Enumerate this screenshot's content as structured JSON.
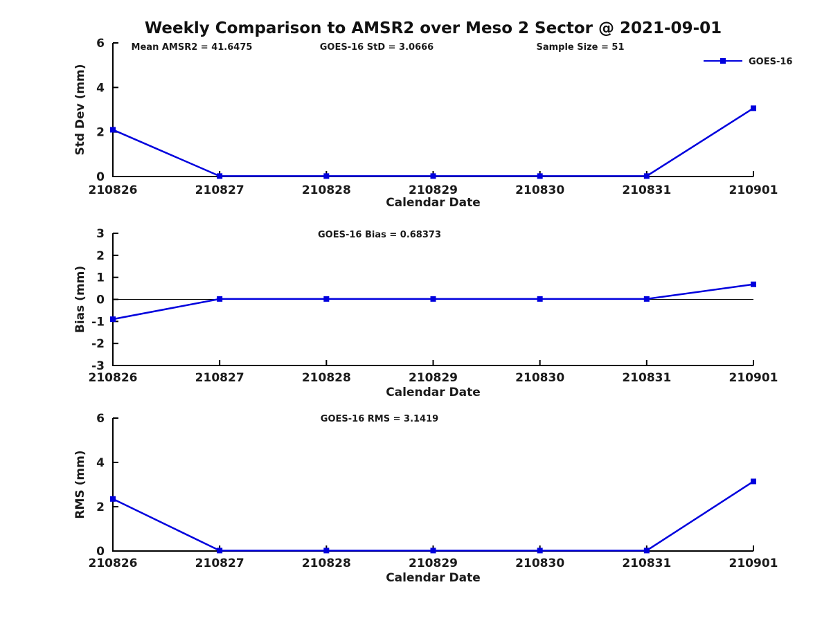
{
  "page": {
    "title": "Weekly Comparison to AMSR2 over Meso 2 Sector @ 2021-09-01"
  },
  "colors": {
    "series": "#0000dd",
    "axis": "#000000",
    "text": "#1a1a1a",
    "background": "#ffffff"
  },
  "chart_data": [
    {
      "type": "line",
      "name": "std-dev",
      "annotations": [
        "Mean AMSR2 = 41.6475",
        "GOES-16 StD = 3.0666",
        "Sample Size = 51"
      ],
      "categories": [
        "210826",
        "210827",
        "210828",
        "210829",
        "210830",
        "210831",
        "210901"
      ],
      "series": [
        {
          "name": "GOES-16",
          "values": [
            2.1,
            0.02,
            0.02,
            0.02,
            0.02,
            0.02,
            3.0666
          ]
        }
      ],
      "xlabel": "Calendar Date",
      "ylabel": "Std Dev (mm)",
      "ylim": [
        0,
        6
      ],
      "yticks": [
        0,
        2,
        4,
        6
      ],
      "grid": false,
      "zero_line": false,
      "marker": "filled-square",
      "legend": {
        "visible": true,
        "position": "top-right",
        "entries": [
          "GOES-16"
        ]
      }
    },
    {
      "type": "line",
      "name": "bias",
      "title": "GOES-16 Bias  = 0.68373",
      "categories": [
        "210826",
        "210827",
        "210828",
        "210829",
        "210830",
        "210831",
        "210901"
      ],
      "series": [
        {
          "name": "GOES-16",
          "values": [
            -0.9,
            0.02,
            0.02,
            0.02,
            0.02,
            0.02,
            0.68373
          ]
        }
      ],
      "xlabel": "Calendar Date",
      "ylabel": "Bias (mm)",
      "ylim": [
        -3,
        3
      ],
      "yticks": [
        -3,
        -2,
        -1,
        0,
        1,
        2,
        3
      ],
      "grid": false,
      "zero_line": true,
      "marker": "filled-square",
      "legend": {
        "visible": false
      }
    },
    {
      "type": "line",
      "name": "rms",
      "title": "GOES-16 RMS = 3.1419",
      "categories": [
        "210826",
        "210827",
        "210828",
        "210829",
        "210830",
        "210831",
        "210901"
      ],
      "series": [
        {
          "name": "GOES-16",
          "values": [
            2.35,
            0.02,
            0.02,
            0.02,
            0.02,
            0.02,
            3.1419
          ]
        }
      ],
      "xlabel": "Calendar Date",
      "ylabel": "RMS (mm)",
      "ylim": [
        0,
        6
      ],
      "yticks": [
        0,
        2,
        4,
        6
      ],
      "grid": false,
      "zero_line": false,
      "marker": "filled-square",
      "legend": {
        "visible": false
      }
    }
  ]
}
